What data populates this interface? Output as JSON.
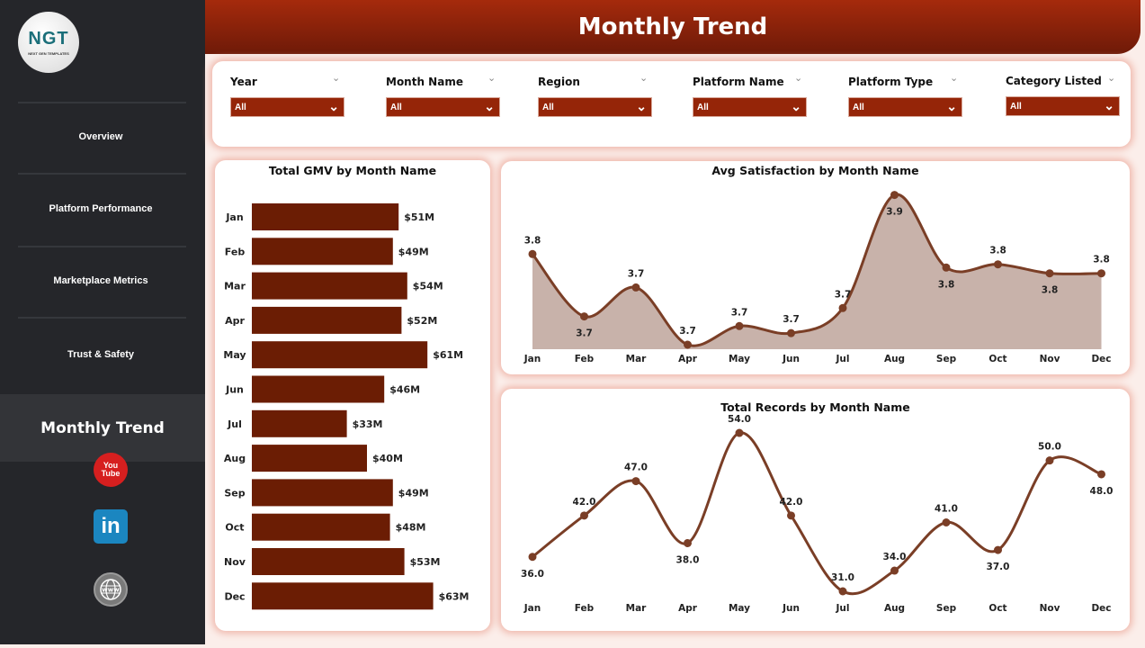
{
  "sidebar": {
    "logo": {
      "text": "NGT",
      "subtext": "NEXT GEN TEMPLATES"
    },
    "items": [
      {
        "label": "Overview"
      },
      {
        "label": "Platform Performance"
      },
      {
        "label": "Marketplace Metrics"
      },
      {
        "label": "Trust & Safety"
      }
    ],
    "active": {
      "label": "Monthly Trend"
    },
    "social": [
      {
        "icon": "youtube-icon",
        "text": "You Tube"
      },
      {
        "icon": "linkedin-icon",
        "text": "in"
      },
      {
        "icon": "globe-www-icon",
        "text": "www"
      }
    ]
  },
  "header": {
    "title": "Monthly Trend"
  },
  "filters": [
    {
      "label": "Year",
      "value": "All"
    },
    {
      "label": "Month Name",
      "value": "All"
    },
    {
      "label": "Region",
      "value": "All"
    },
    {
      "label": "Platform Name",
      "value": "All"
    },
    {
      "label": "Platform Type",
      "value": "All"
    },
    {
      "label": "Category Listed",
      "value": "All"
    }
  ],
  "colors": {
    "accent": "#952508",
    "bar": "#6b1d04",
    "line": "#7a3e26",
    "area": "#c8b2aa",
    "sidebar": "#25262a"
  },
  "chart_data": [
    {
      "type": "bar",
      "orientation": "horizontal",
      "title": "Total GMV by Month Name",
      "categories": [
        "Jan",
        "Feb",
        "Mar",
        "Apr",
        "May",
        "Jun",
        "Jul",
        "Aug",
        "Sep",
        "Oct",
        "Nov",
        "Dec"
      ],
      "values": [
        51,
        49,
        54,
        52,
        61,
        46,
        33,
        40,
        49,
        48,
        53,
        63
      ],
      "labels": [
        "$51M",
        "$49M",
        "$54M",
        "$52M",
        "$61M",
        "$46M",
        "$33M",
        "$40M",
        "$49M",
        "$48M",
        "$53M",
        "$63M"
      ],
      "unit": "$M"
    },
    {
      "type": "area",
      "title": "Avg Satisfaction by Month Name",
      "categories": [
        "Jan",
        "Feb",
        "Mar",
        "Apr",
        "May",
        "Jun",
        "Jul",
        "Aug",
        "Sep",
        "Oct",
        "Nov",
        "Dec"
      ],
      "values": [
        3.793,
        3.696,
        3.741,
        3.652,
        3.681,
        3.67,
        3.709,
        3.885,
        3.772,
        3.777,
        3.763,
        3.763
      ],
      "labels": [
        "3.8",
        "3.7",
        "3.7",
        "3.7",
        "3.7",
        "3.7",
        "3.7",
        "3.9",
        "3.8",
        "3.8",
        "3.8",
        "3.8"
      ]
    },
    {
      "type": "line",
      "title": "Total Records by Month Name",
      "categories": [
        "Jan",
        "Feb",
        "Mar",
        "Apr",
        "May",
        "Jun",
        "Jul",
        "Aug",
        "Sep",
        "Oct",
        "Nov",
        "Dec"
      ],
      "values": [
        36,
        42,
        47,
        38,
        54,
        42,
        31,
        34,
        41,
        37,
        50,
        48
      ],
      "labels": [
        "36.0",
        "42.0",
        "47.0",
        "38.0",
        "54.0",
        "42.0",
        "31.0",
        "34.0",
        "41.0",
        "37.0",
        "50.0",
        "48.0"
      ]
    }
  ]
}
